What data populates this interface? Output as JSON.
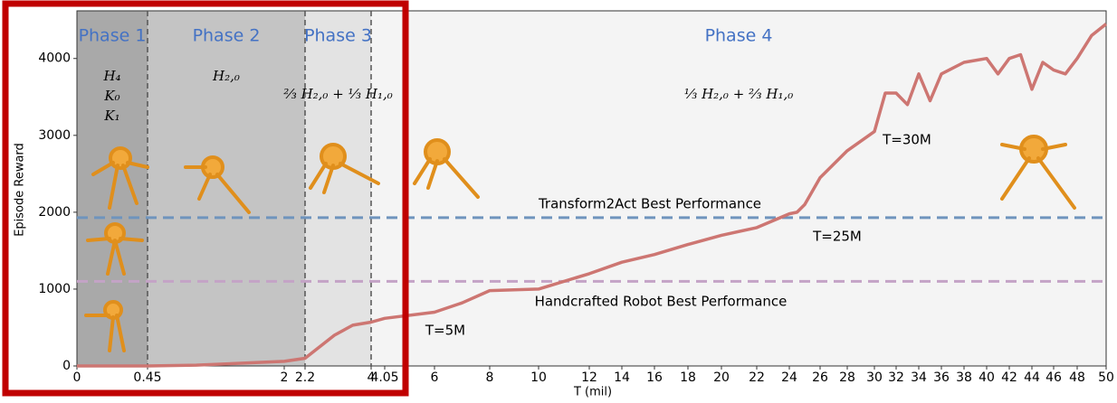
{
  "chart_data": {
    "type": "line",
    "x_label": "T (mil)",
    "y_label": "Episode Reward",
    "xticks": [
      0,
      0.45,
      2,
      2.2,
      4,
      4.05,
      6,
      8,
      10,
      12,
      14,
      16,
      18,
      20,
      22,
      24,
      26,
      28,
      30,
      32,
      34,
      36,
      38,
      40,
      42,
      44,
      46,
      48,
      50
    ],
    "xlim": [
      0,
      50
    ],
    "ylim": [
      0,
      4620
    ],
    "yticks": [
      0,
      1000,
      2000,
      3000,
      4000
    ],
    "phases": [
      {
        "name": "Phase 1",
        "start": 0,
        "end": 0.45,
        "color": "#a9a9a9",
        "formula": [
          "H₄",
          "K₀",
          "K₁"
        ]
      },
      {
        "name": "Phase 2",
        "start": 0.45,
        "end": 2.2,
        "color": "#c4c4c4",
        "formula": [
          "H₂,₀"
        ]
      },
      {
        "name": "Phase 3",
        "start": 2.2,
        "end": 4,
        "color": "#e3e3e3",
        "formula": [
          "⅔ H₂,₀ + ⅓ H₁,₀"
        ]
      },
      {
        "name": "Phase 4",
        "start": 4,
        "end": 50,
        "color": "#f4f4f4",
        "formula": [
          "⅓ H₂,₀ + ⅔ H₁,₀"
        ]
      }
    ],
    "reference_lines": [
      {
        "label": "Transform2Act Best Performance",
        "value": 1930,
        "color": "#6f94bd"
      },
      {
        "label": "Handcrafted Robot Best Performance",
        "value": 1100,
        "color": "#c4a3c6"
      }
    ],
    "annotations": [
      "T=5M",
      "T=25M",
      "T=30M"
    ],
    "series": [
      {
        "name": "Episode Reward",
        "color": "#cd7672",
        "x": [
          0,
          0.45,
          1,
          2,
          2.2,
          3,
          3.5,
          4,
          4.05,
          6,
          7,
          8,
          10,
          12,
          14,
          16,
          18,
          20,
          22,
          24,
          24.5,
          25,
          26,
          28,
          30,
          31,
          32,
          33,
          34,
          35,
          36,
          38,
          40,
          41,
          42,
          43,
          44,
          45,
          46,
          47,
          48,
          49,
          50
        ],
        "values": [
          0,
          0,
          10,
          60,
          100,
          400,
          530,
          570,
          620,
          700,
          820,
          980,
          1000,
          1200,
          1350,
          1450,
          1580,
          1700,
          1800,
          1980,
          2000,
          2100,
          2450,
          2800,
          3050,
          3550,
          3550,
          3400,
          3800,
          3450,
          3800,
          3950,
          4000,
          3800,
          4000,
          4050,
          3600,
          3950,
          3850,
          3800,
          4000,
          4300,
          4450
        ]
      }
    ]
  }
}
